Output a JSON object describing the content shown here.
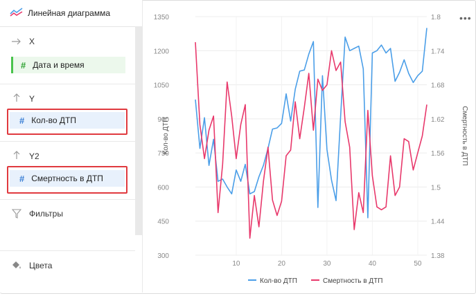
{
  "sidebar": {
    "header_title": "Линейная диаграмма",
    "sections": {
      "x_label": "X",
      "x_field": "Дата и время",
      "y_label": "Y",
      "y_field": "Кол-во ДТП",
      "y2_label": "Y2",
      "y2_field": "Смертность в ДТП",
      "filters_label": "Фильтры",
      "colors_label": "Цвета"
    }
  },
  "toolbar": {
    "more_label": "•••"
  },
  "colors": {
    "series1": "#4a9ee8",
    "series2": "#e8386b",
    "highlight_box": "#e0393e"
  },
  "chart_data": {
    "type": "line",
    "title": "",
    "xlabel": "",
    "ylabel": "Кол-во ДТП",
    "y2label": "Смертность в ДТП",
    "ylim": [
      300,
      1350
    ],
    "y2lim": [
      1.38,
      1.8
    ],
    "y_ticks": [
      "300",
      "450",
      "600",
      "750",
      "900",
      "1050",
      "1200",
      "1350"
    ],
    "y2_ticks": [
      "1.38",
      "1.44",
      "1.5",
      "1.56",
      "1.62",
      "1.68",
      "1.74",
      "1.8"
    ],
    "x_ticks": [
      "10",
      "20",
      "30",
      "40",
      "50"
    ],
    "x_tick_values": [
      10,
      20,
      30,
      40,
      50
    ],
    "xlim": [
      1,
      52
    ],
    "x": [
      1,
      2,
      3,
      4,
      5,
      6,
      7,
      8,
      9,
      10,
      11,
      12,
      13,
      14,
      15,
      16,
      17,
      18,
      19,
      20,
      21,
      22,
      23,
      24,
      25,
      26,
      27,
      28,
      29,
      30,
      31,
      32,
      33,
      34,
      35,
      36,
      37,
      38,
      39,
      40,
      41,
      42,
      43,
      44,
      45,
      46,
      47,
      48,
      49,
      50,
      51,
      52
    ],
    "legend_position": "bottom",
    "series": [
      {
        "name": "Кол-во ДТП",
        "axis": "left",
        "values": [
          985,
          770,
          905,
          695,
          810,
          625,
          635,
          600,
          570,
          675,
          625,
          700,
          570,
          580,
          645,
          695,
          770,
          855,
          860,
          880,
          1010,
          890,
          1030,
          1110,
          1115,
          1185,
          1240,
          510,
          1090,
          765,
          630,
          540,
          910,
          1260,
          1200,
          1210,
          1220,
          1120,
          465,
          1190,
          1200,
          1225,
          1190,
          1210,
          1065,
          1105,
          1160,
          1100,
          1060,
          1090,
          1110,
          1300
        ]
      },
      {
        "name": "Смертность в ДТП",
        "axis": "right",
        "series_index": 2,
        "values": [
          1.755,
          1.61,
          1.55,
          1.6,
          1.625,
          1.455,
          1.54,
          1.685,
          1.625,
          1.55,
          1.61,
          1.645,
          1.41,
          1.485,
          1.43,
          1.51,
          1.57,
          1.477,
          1.45,
          1.475,
          1.555,
          1.565,
          1.65,
          1.585,
          1.64,
          1.7,
          1.6,
          1.69,
          1.67,
          1.68,
          1.74,
          1.705,
          1.72,
          1.615,
          1.57,
          1.425,
          1.49,
          1.455,
          1.635,
          1.52,
          1.465,
          1.46,
          1.465,
          1.555,
          1.485,
          1.5,
          1.585,
          1.58,
          1.53,
          1.56,
          1.59,
          1.645
        ]
      }
    ]
  }
}
